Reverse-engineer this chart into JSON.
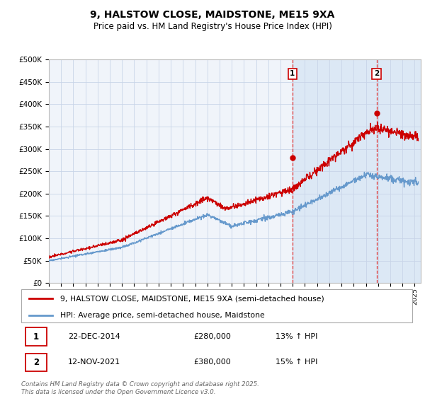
{
  "title": "9, HALSTOW CLOSE, MAIDSTONE, ME15 9XA",
  "subtitle": "Price paid vs. HM Land Registry's House Price Index (HPI)",
  "ytick_values": [
    0,
    50000,
    100000,
    150000,
    200000,
    250000,
    300000,
    350000,
    400000,
    450000,
    500000
  ],
  "ylim": [
    0,
    500000
  ],
  "xlim_start": 1995,
  "xlim_end": 2025.5,
  "xtick_years": [
    1995,
    1996,
    1997,
    1998,
    1999,
    2000,
    2001,
    2002,
    2003,
    2004,
    2005,
    2006,
    2007,
    2008,
    2009,
    2010,
    2011,
    2012,
    2013,
    2014,
    2015,
    2016,
    2017,
    2018,
    2019,
    2020,
    2021,
    2022,
    2023,
    2024,
    2025
  ],
  "sale1_x": 2014.97,
  "sale1_y": 280000,
  "sale1_label": "1",
  "sale2_x": 2021.87,
  "sale2_y": 380000,
  "sale2_label": "2",
  "shaded_region_start": 2014.97,
  "shaded_region_end": 2025.5,
  "shaded_color": "#dce8f5",
  "legend_line1_label": "9, HALSTOW CLOSE, MAIDSTONE, ME15 9XA (semi-detached house)",
  "legend_line1_color": "#cc0000",
  "legend_line2_label": "HPI: Average price, semi-detached house, Maidstone",
  "legend_line2_color": "#6699cc",
  "annotation1_date": "22-DEC-2014",
  "annotation1_price": "£280,000",
  "annotation1_hpi": "13% ↑ HPI",
  "annotation2_date": "12-NOV-2021",
  "annotation2_price": "£380,000",
  "annotation2_hpi": "15% ↑ HPI",
  "footer": "Contains HM Land Registry data © Crown copyright and database right 2025.\nThis data is licensed under the Open Government Licence v3.0.",
  "bg_color": "#ffffff",
  "plot_bg_color": "#f0f4fa",
  "grid_color": "#c8d4e8"
}
